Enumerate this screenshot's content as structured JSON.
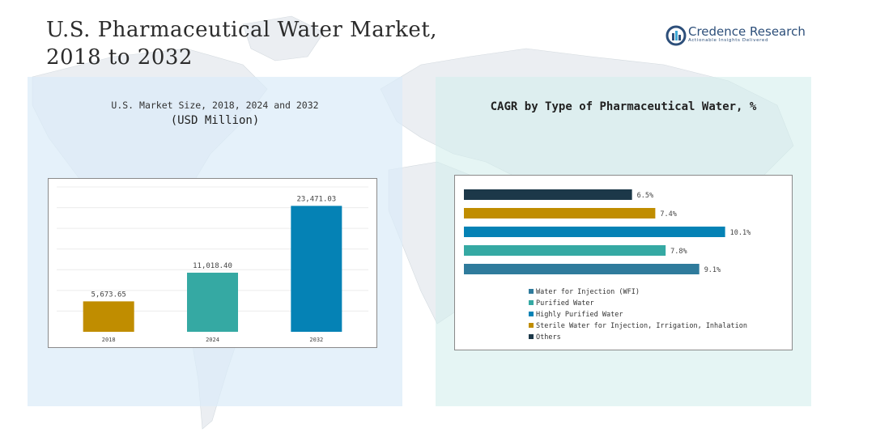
{
  "title": "U.S. Pharmaceutical Water Market,\n2018 to 2032",
  "logo": {
    "name": "Credence Research",
    "tagline": "Actionable Insights Delivered",
    "icon": "credence-research-logo-icon"
  },
  "colors": {
    "panel_left": "#dbecf8",
    "panel_right": "#d4eeec",
    "gold": "#c08d00",
    "teal": "#35a9a3",
    "blue": "#0582b5",
    "steel_blue": "#2f7b9c",
    "dark_navy": "#1c3849"
  },
  "left_chart": {
    "title_line1": "U.S. Market Size, 2018, 2024 and 2032",
    "title_line2": "(USD Million)"
  },
  "right_chart": {
    "title": "CAGR by Type of Pharmaceutical Water, %"
  },
  "chart_data": [
    {
      "type": "bar",
      "title": "U.S. Market Size, 2018, 2024 and 2032 (USD Million)",
      "categories": [
        "2018",
        "2024",
        "2032"
      ],
      "values": [
        5673.65,
        11018.4,
        23471.03
      ],
      "value_labels": [
        "5,673.65",
        "11,018.40",
        "23,471.03"
      ],
      "colors": [
        "#c08d00",
        "#35a9a3",
        "#0582b5"
      ],
      "ylim": [
        0,
        27000
      ],
      "grid": true,
      "xlabel": "",
      "ylabel": ""
    },
    {
      "type": "bar",
      "orientation": "horizontal",
      "title": "CAGR by Type of Pharmaceutical Water, %",
      "categories": [
        "Others",
        "Sterile Water for Injection, Irrigation, Inhalation",
        "Highly Purified Water",
        "Purified Water",
        "Water for Injection (WFI)"
      ],
      "values": [
        6.5,
        7.4,
        10.1,
        7.8,
        9.1
      ],
      "value_labels": [
        "6.5%",
        "7.4%",
        "10.1%",
        "7.8%",
        "9.1%"
      ],
      "colors": [
        "#1c3849",
        "#c08d00",
        "#0582b5",
        "#35a9a3",
        "#2f7b9c"
      ],
      "xlim": [
        0,
        10.8
      ],
      "legend": {
        "placement": "bottom-left",
        "items": [
          {
            "label": "Water for Injection (WFI)",
            "color": "#2f7b9c"
          },
          {
            "label": "Purified Water",
            "color": "#35a9a3"
          },
          {
            "label": "Highly Purified Water",
            "color": "#0582b5"
          },
          {
            "label": "Sterile Water for Injection, Irrigation, Inhalation",
            "color": "#c08d00"
          },
          {
            "label": "Others",
            "color": "#1c3849"
          }
        ]
      }
    }
  ]
}
